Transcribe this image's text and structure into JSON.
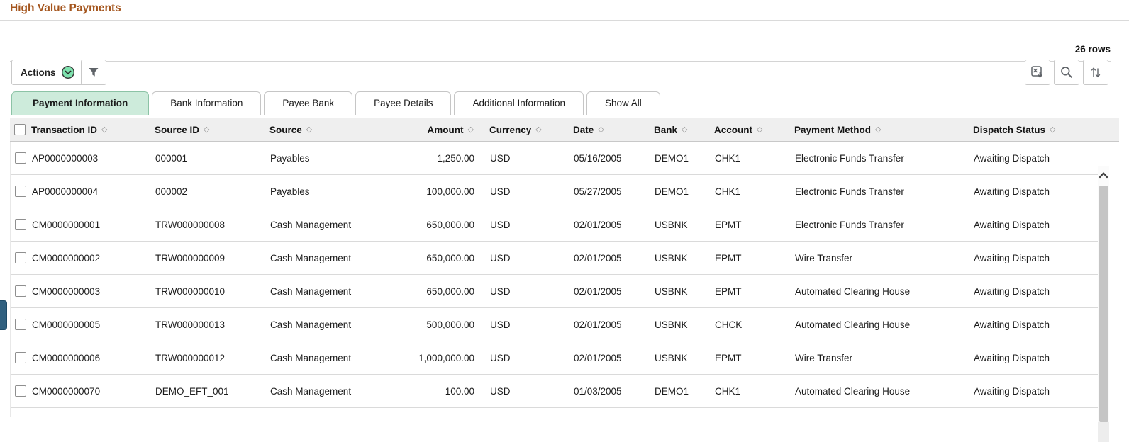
{
  "page": {
    "title": "High Value Payments",
    "row_count": "26 rows"
  },
  "toolbar": {
    "actions_label": "Actions",
    "icons": {
      "actions_menu": "chevron-down-circle",
      "filter": "funnel",
      "download": "export-grid",
      "search": "magnifier",
      "sort": "arrows-up-down"
    }
  },
  "tabs": [
    {
      "label": "Payment Information",
      "active": true
    },
    {
      "label": "Bank Information",
      "active": false
    },
    {
      "label": "Payee Bank",
      "active": false
    },
    {
      "label": "Payee Details",
      "active": false
    },
    {
      "label": "Additional Information",
      "active": false
    },
    {
      "label": "Show All",
      "active": false
    }
  ],
  "table": {
    "sort_glyph": "◇",
    "columns": [
      "Transaction ID",
      "Source ID",
      "Source",
      "Amount",
      "Currency",
      "Date",
      "Bank",
      "Account",
      "Payment Method",
      "Dispatch Status"
    ],
    "rows": [
      [
        "AP0000000003",
        "000001",
        "Payables",
        "1,250.00",
        "USD",
        "05/16/2005",
        "DEMO1",
        "CHK1",
        "Electronic Funds Transfer",
        "Awaiting Dispatch"
      ],
      [
        "AP0000000004",
        "000002",
        "Payables",
        "100,000.00",
        "USD",
        "05/27/2005",
        "DEMO1",
        "CHK1",
        "Electronic Funds Transfer",
        "Awaiting Dispatch"
      ],
      [
        "CM0000000001",
        "TRW000000008",
        "Cash Management",
        "650,000.00",
        "USD",
        "02/01/2005",
        "USBNK",
        "EPMT",
        "Electronic Funds Transfer",
        "Awaiting Dispatch"
      ],
      [
        "CM0000000002",
        "TRW000000009",
        "Cash Management",
        "650,000.00",
        "USD",
        "02/01/2005",
        "USBNK",
        "EPMT",
        "Wire Transfer",
        "Awaiting Dispatch"
      ],
      [
        "CM0000000003",
        "TRW000000010",
        "Cash Management",
        "650,000.00",
        "USD",
        "02/01/2005",
        "USBNK",
        "EPMT",
        "Automated Clearing House",
        "Awaiting Dispatch"
      ],
      [
        "CM0000000005",
        "TRW000000013",
        "Cash Management",
        "500,000.00",
        "USD",
        "02/01/2005",
        "USBNK",
        "CHCK",
        "Automated Clearing House",
        "Awaiting Dispatch"
      ],
      [
        "CM0000000006",
        "TRW000000012",
        "Cash Management",
        "1,000,000.00",
        "USD",
        "02/01/2005",
        "USBNK",
        "EPMT",
        "Wire Transfer",
        "Awaiting Dispatch"
      ],
      [
        "CM0000000070",
        "DEMO_EFT_001",
        "Cash Management",
        "100.00",
        "USD",
        "01/03/2005",
        "DEMO1",
        "CHK1",
        "Automated Clearing House",
        "Awaiting Dispatch"
      ]
    ]
  },
  "colors": {
    "title_text": "#a4551d",
    "active_tab_bg": "#cdebdb",
    "active_tab_border": "#8cc3a6",
    "actions_icon_green": "#7ee2ae",
    "header_bg": "#efefef",
    "drawer_handle_blue": "#30607f"
  }
}
